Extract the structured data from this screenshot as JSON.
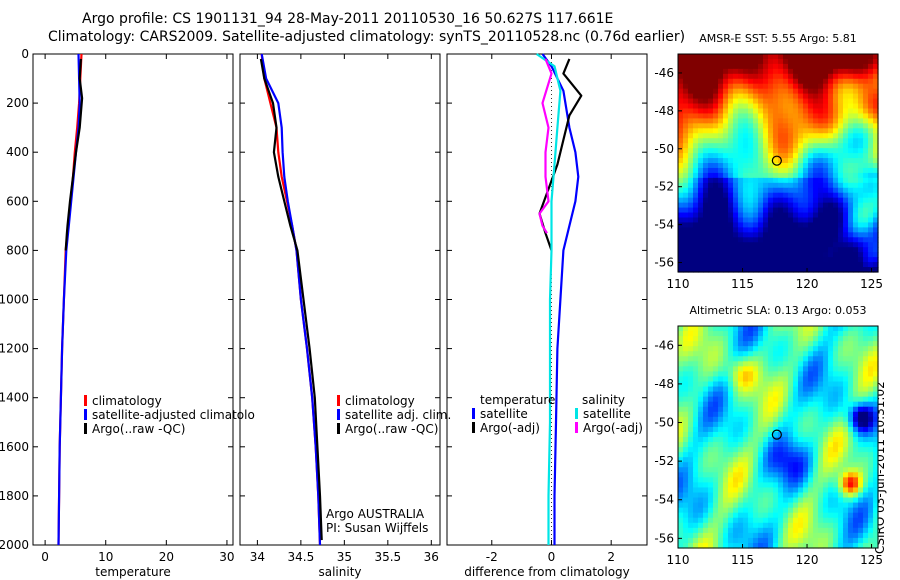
{
  "header": {
    "line1": "Argo profile: CS 1901131_94 28-May-2011 20110530_16 50.627S 117.661E",
    "line2": "Climatology: CARS2009. Satellite-adjusted climatology: synTS_20110528.nc (0.76d earlier)"
  },
  "stamp": "CSIRO 03-Jun-2011 10:31:02",
  "colors": {
    "climatology": "#ff0000",
    "satellite": "#0000ff",
    "argo": "#000000",
    "salinity_satellite": "#00e5e5",
    "salinity_argo": "#ff00ff"
  },
  "chart_data": [
    {
      "type": "line",
      "xlabel": "temperature",
      "ylabel": "",
      "xlim": [
        -2,
        31
      ],
      "ylim": [
        2000,
        0
      ],
      "xticks": [
        0,
        10,
        20,
        30
      ],
      "yticks": [
        0,
        200,
        400,
        600,
        800,
        1000,
        1200,
        1400,
        1600,
        1800,
        2000
      ],
      "legend": {
        "position": "lower-right",
        "entries": [
          "climatology",
          "satellite-adjusted climatolo",
          "Argo(..raw -QC)"
        ]
      },
      "series": [
        {
          "name": "climatology",
          "color": "#ff0000",
          "x": [
            6.0,
            5.8,
            5.6,
            5.3,
            4.9,
            4.6,
            4.2,
            3.8,
            3.4,
            3.1,
            2.8,
            2.6,
            2.4,
            2.3,
            2.2
          ],
          "y": [
            0,
            100,
            200,
            300,
            400,
            500,
            600,
            700,
            800,
            1000,
            1200,
            1400,
            1600,
            1800,
            2000
          ]
        },
        {
          "name": "satellite-adjusted climatolo",
          "color": "#0000ff",
          "x": [
            5.5,
            5.6,
            5.7,
            5.5,
            5.1,
            4.7,
            4.3,
            3.9,
            3.5,
            3.1,
            2.8,
            2.6,
            2.4,
            2.3,
            2.2
          ],
          "y": [
            0,
            100,
            200,
            300,
            400,
            500,
            600,
            700,
            800,
            1000,
            1200,
            1400,
            1600,
            1800,
            2000
          ]
        },
        {
          "name": "Argo(..raw -QC)",
          "color": "#000000",
          "x": [
            5.9,
            5.7,
            6.1,
            5.7,
            5.1,
            4.6,
            4.1,
            3.7,
            3.6,
            3.4
          ],
          "y": [
            20,
            100,
            180,
            300,
            400,
            500,
            600,
            700,
            730,
            800
          ]
        }
      ]
    },
    {
      "type": "line",
      "xlabel": "salinity",
      "ylabel": "",
      "xlim": [
        33.8,
        36.1
      ],
      "ylim": [
        2000,
        0
      ],
      "xticks": [
        34,
        34.5,
        35,
        35.5,
        36
      ],
      "legend": {
        "position": "lower-right",
        "entries": [
          "climatology",
          "satellite adj. clim.",
          "Argo(..raw -QC)"
        ]
      },
      "annotations": [
        "Argo AUSTRALIA",
        "PI: Susan Wijffels"
      ],
      "series": [
        {
          "name": "climatology",
          "color": "#ff0000",
          "x": [
            34.05,
            34.08,
            34.15,
            34.22,
            34.24,
            34.28,
            34.34,
            34.4,
            34.45,
            34.5,
            34.57,
            34.63,
            34.67,
            34.7,
            34.72
          ],
          "y": [
            0,
            100,
            200,
            300,
            400,
            500,
            600,
            700,
            800,
            1000,
            1200,
            1400,
            1600,
            1800,
            2000
          ]
        },
        {
          "name": "satellite adj. clim.",
          "color": "#0000ff",
          "x": [
            34.05,
            34.1,
            34.24,
            34.28,
            34.29,
            34.31,
            34.35,
            34.4,
            34.45,
            34.5,
            34.57,
            34.63,
            34.67,
            34.7,
            34.72
          ],
          "y": [
            0,
            100,
            200,
            300,
            400,
            500,
            600,
            700,
            800,
            1000,
            1200,
            1400,
            1600,
            1800,
            2000
          ]
        },
        {
          "name": "Argo(..raw -QC)",
          "color": "#000000",
          "x": [
            34.04,
            34.08,
            34.18,
            34.22,
            34.19,
            34.24,
            34.31,
            34.38,
            34.46,
            34.53,
            34.6,
            34.66,
            34.69,
            34.72,
            34.74
          ],
          "y": [
            20,
            100,
            200,
            300,
            400,
            500,
            600,
            700,
            800,
            1000,
            1200,
            1400,
            1600,
            1800,
            1980
          ]
        }
      ]
    },
    {
      "type": "line",
      "xlabel": "difference from climatology",
      "ylabel": "",
      "xlim": [
        -3.5,
        3.2
      ],
      "ylim": [
        2000,
        0
      ],
      "xticks": [
        -2,
        0,
        2
      ],
      "legend": {
        "position": "lower-center",
        "groups": [
          {
            "title": "temperature",
            "entries": [
              "satellite",
              "Argo(-adj)"
            ]
          },
          {
            "title": "salinity",
            "entries": [
              "satellite",
              "Argo(-adj)"
            ]
          }
        ]
      },
      "series": [
        {
          "name": "temperature satellite",
          "color": "#0000ff",
          "x": [
            -0.3,
            0.0,
            0.4,
            0.6,
            0.8,
            0.9,
            0.8,
            0.6,
            0.4,
            0.3,
            0.2,
            0.15,
            0.1,
            0.1
          ],
          "y": [
            0,
            50,
            150,
            300,
            400,
            500,
            600,
            700,
            800,
            1000,
            1200,
            1500,
            1800,
            2000
          ]
        },
        {
          "name": "temperature Argo(-adj)",
          "color": "#000000",
          "x": [
            0.6,
            0.4,
            1.0,
            0.6,
            0.4,
            0.2,
            -0.1,
            -0.4,
            -0.2,
            0.0
          ],
          "y": [
            20,
            80,
            170,
            250,
            350,
            450,
            550,
            650,
            730,
            800
          ]
        },
        {
          "name": "salinity satellite",
          "color": "#00e5e5",
          "x": [
            -0.5,
            0.1,
            0.3,
            0.2,
            0.1,
            0.0,
            0.0,
            -0.05,
            -0.05,
            -0.05,
            -0.1,
            -0.1
          ],
          "y": [
            0,
            50,
            150,
            300,
            450,
            600,
            800,
            1000,
            1200,
            1500,
            1800,
            2000
          ]
        },
        {
          "name": "salinity Argo(-adj)",
          "color": "#ff00ff",
          "x": [
            -0.2,
            0.0,
            -0.3,
            -0.1,
            -0.2,
            -0.2,
            -0.1,
            -0.4,
            -0.3,
            -0.15
          ],
          "y": [
            20,
            80,
            200,
            300,
            400,
            500,
            600,
            650,
            700,
            730
          ]
        }
      ]
    },
    {
      "type": "heatmap",
      "title": "AMSR-E SST: 5.55 Argo: 5.81",
      "xlim": [
        110,
        125.5
      ],
      "ylim": [
        -56.5,
        -45
      ],
      "xticks": [
        110,
        115,
        120,
        125
      ],
      "yticks": [
        -46,
        -48,
        -50,
        -52,
        -54,
        -56
      ],
      "marker": {
        "lon": 117.661,
        "lat": -50.627
      }
    },
    {
      "type": "heatmap",
      "title": "Altimetric SLA: 0.13 Argo: 0.053",
      "xlim": [
        110,
        125.5
      ],
      "ylim": [
        -56.5,
        -45
      ],
      "xticks": [
        110,
        115,
        120,
        125
      ],
      "yticks": [
        -46,
        -48,
        -50,
        -52,
        -54,
        -56
      ],
      "marker": {
        "lon": 117.661,
        "lat": -50.627
      }
    }
  ]
}
